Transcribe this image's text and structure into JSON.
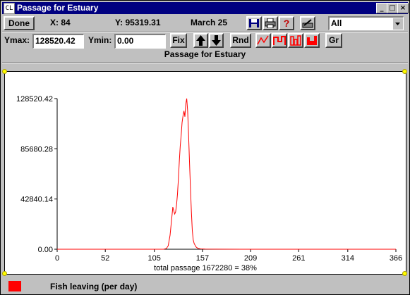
{
  "window": {
    "title": "Passage for Estuary",
    "controls": [
      "_",
      "□",
      "×"
    ]
  },
  "toolbar": {
    "done_label": "Done",
    "x_readout": "X: 84",
    "y_readout": "Y: 95319.31",
    "date_readout": "March 25",
    "icons": [
      "save-icon",
      "print-icon",
      "help-icon",
      "setup-icon"
    ],
    "select_value": "All"
  },
  "row2": {
    "ymax_label": "Ymax:",
    "ymax_value": "128520.42",
    "ymin_label": "Ymin:",
    "ymin_value": "0.00",
    "fix_label": "Fix",
    "rnd_label": "Rnd",
    "gr_label": "Gr",
    "chart_type_icons": [
      "line-chart-icon",
      "step-chart-icon",
      "bar-outline-icon",
      "bar-filled-icon"
    ]
  },
  "subtitle": "Passage for Estuary",
  "legend": {
    "label": "Fish leaving (per day)",
    "color": "#ff0000"
  },
  "chart_data": {
    "type": "line",
    "title": "Passage for Estuary",
    "xlabel": "total passage 1672280 = 38%",
    "ylabel": "",
    "xlim": [
      0,
      366
    ],
    "ylim": [
      0,
      128520.42
    ],
    "x_ticks": [
      "0",
      "52",
      "105",
      "157",
      "209",
      "261",
      "314",
      "366"
    ],
    "y_ticks": [
      "0.00",
      "42840.14",
      "85680.28",
      "128520.42"
    ],
    "grid": false,
    "series": [
      {
        "name": "Fish leaving (per day)",
        "color": "#ff0000",
        "points": [
          [
            0,
            0
          ],
          [
            100,
            0
          ],
          [
            115,
            0
          ],
          [
            118,
            600
          ],
          [
            120,
            3000
          ],
          [
            122,
            12000
          ],
          [
            124,
            28000
          ],
          [
            125,
            36000
          ],
          [
            126,
            33000
          ],
          [
            127,
            30000
          ],
          [
            128,
            32000
          ],
          [
            129,
            38000
          ],
          [
            130,
            47000
          ],
          [
            131,
            60000
          ],
          [
            132,
            75000
          ],
          [
            133,
            88000
          ],
          [
            134,
            97000
          ],
          [
            135,
            108000
          ],
          [
            136,
            114000
          ],
          [
            137,
            118000
          ],
          [
            138,
            113000
          ],
          [
            139,
            124000
          ],
          [
            140,
            128520
          ],
          [
            141,
            118000
          ],
          [
            142,
            98000
          ],
          [
            143,
            75000
          ],
          [
            144,
            52000
          ],
          [
            145,
            32000
          ],
          [
            146,
            16000
          ],
          [
            147,
            8000
          ],
          [
            148,
            5000
          ],
          [
            149,
            3500
          ],
          [
            150,
            2000
          ],
          [
            152,
            800
          ],
          [
            155,
            300
          ],
          [
            160,
            100
          ],
          [
            170,
            50
          ],
          [
            200,
            20
          ],
          [
            250,
            0
          ],
          [
            300,
            0
          ],
          [
            366,
            0
          ]
        ]
      }
    ]
  }
}
